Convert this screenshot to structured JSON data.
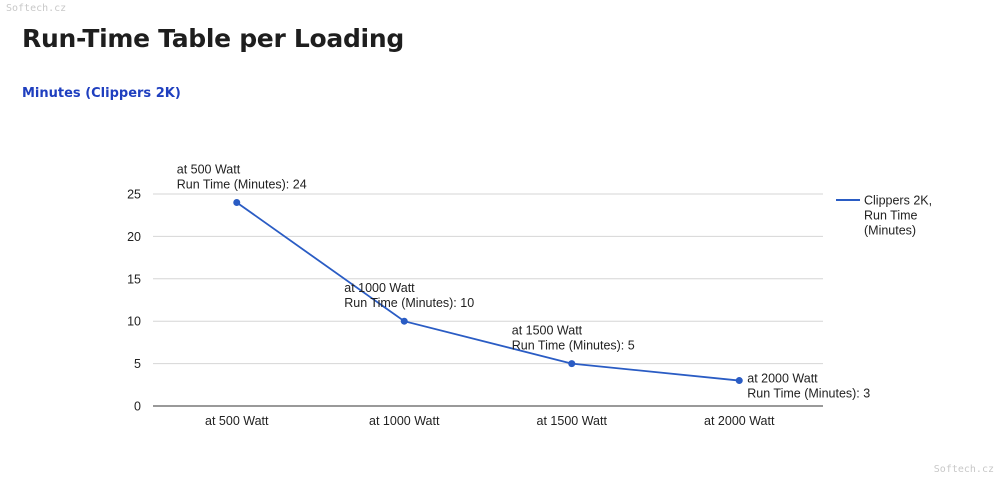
{
  "watermark": {
    "top": "Softech.cz",
    "bottom": "Softech.cz"
  },
  "page": {
    "title": "Run-Time Table per Loading"
  },
  "chart_data": {
    "type": "line",
    "subtitle": "Minutes (Clippers 2K)",
    "categories": [
      "at 500 Watt",
      "at 1000 Watt",
      "at 1500 Watt",
      "at 2000 Watt"
    ],
    "series": [
      {
        "name": "Clippers 2K, Run Time (Minutes)",
        "values": [
          24,
          10,
          5,
          3
        ],
        "color": "#2a5cc4"
      }
    ],
    "legend_lines": [
      "Clippers 2K,",
      "Run Time",
      "(Minutes)"
    ],
    "data_label_prefix": "Run Time (Minutes): ",
    "ylim": [
      0,
      25
    ],
    "yticks": [
      0,
      5,
      10,
      15,
      20,
      25
    ],
    "xlabel": "",
    "ylabel": "",
    "grid": true,
    "legend_position": "right"
  }
}
